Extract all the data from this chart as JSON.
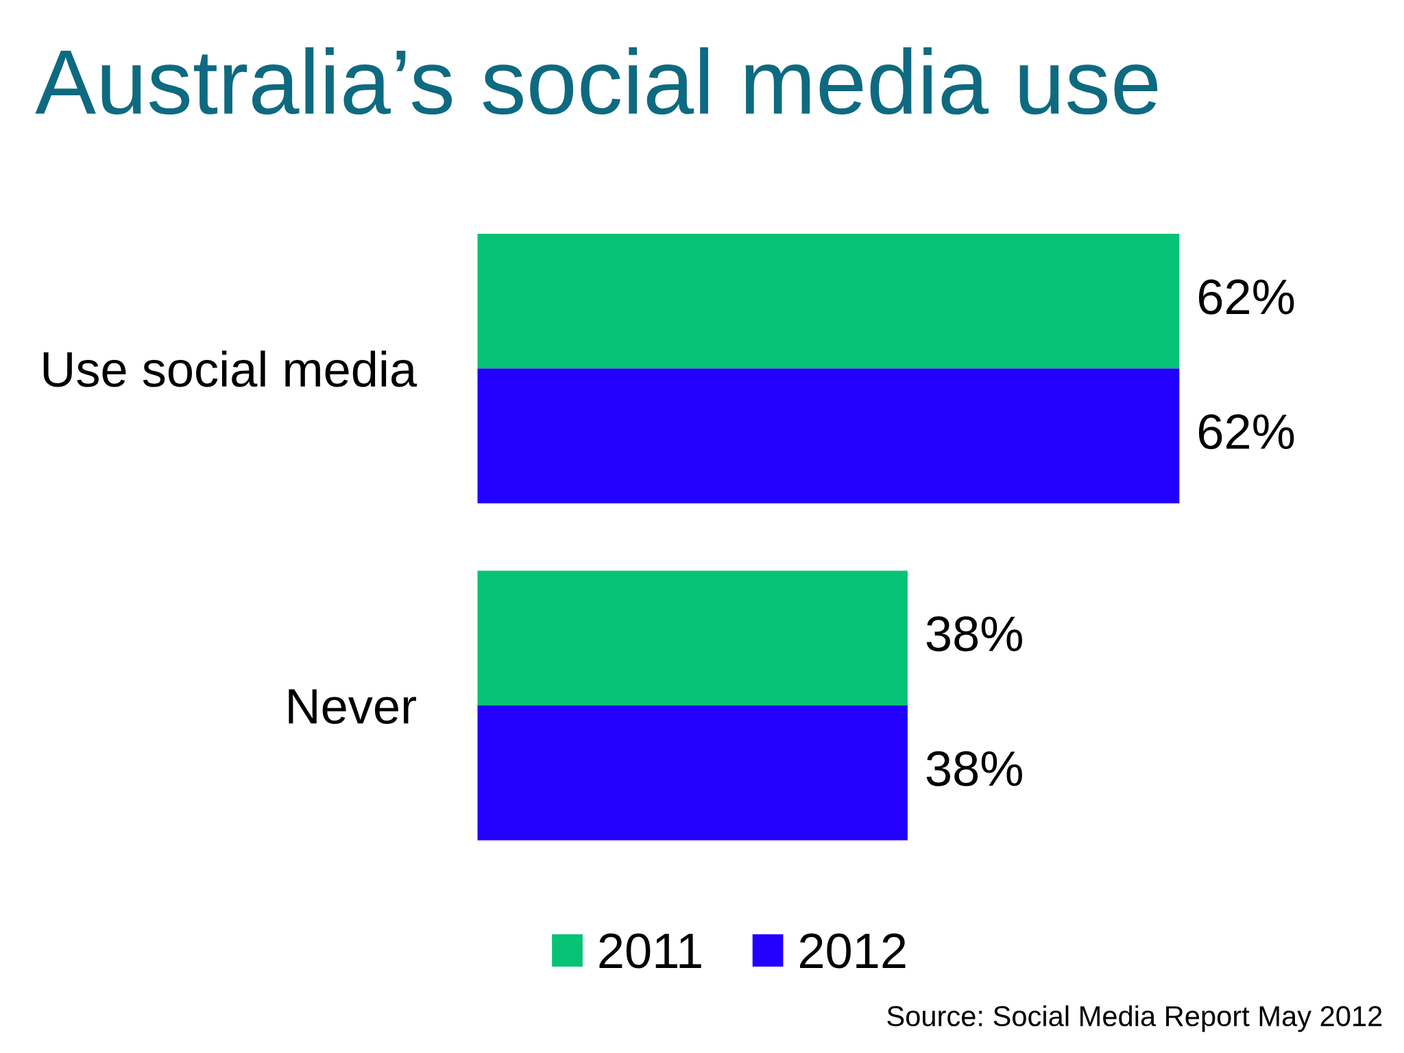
{
  "chart_data": {
    "type": "bar",
    "orientation": "horizontal",
    "title": "Australia’s social media use",
    "categories": [
      "Use social media",
      "Never"
    ],
    "series": [
      {
        "name": "2011",
        "color": "#06c274",
        "values": [
          62,
          38
        ],
        "value_labels": [
          "62%",
          "38%"
        ]
      },
      {
        "name": "2012",
        "color": "#2200ff",
        "values": [
          62,
          38
        ],
        "value_labels": [
          "62%",
          "38%"
        ]
      }
    ],
    "legend": "bottom",
    "grid": false,
    "tick_labels": "y",
    "annotations": [
      "Source: Social Media Report May 2012"
    ]
  }
}
